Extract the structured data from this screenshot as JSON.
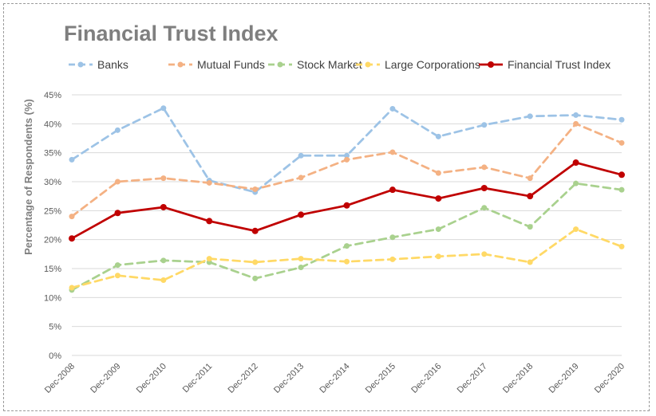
{
  "chart_data": {
    "type": "line",
    "title": "Financial Trust Index",
    "xlabel": "",
    "ylabel": "Percentage of Respondents (%)",
    "ylim": [
      0,
      45
    ],
    "y_ticks": [
      "0%",
      "5%",
      "10%",
      "15%",
      "20%",
      "25%",
      "30%",
      "35%",
      "40%",
      "45%"
    ],
    "grid": true,
    "legend_position": "top",
    "categories": [
      "Dec-2008",
      "Dec-2009",
      "Dec-2010",
      "Dec-2011",
      "Dec-2012",
      "Dec-2013",
      "Dec-2014",
      "Dec-2015",
      "Dec-2016",
      "Dec-2017",
      "Dec-2018",
      "Dec-2019",
      "Dec-2020"
    ],
    "series": [
      {
        "name": "Banks",
        "color": "#9dc3e6",
        "dashed": true,
        "values": [
          33.8,
          38.9,
          42.7,
          30.2,
          28.2,
          34.5,
          34.5,
          42.6,
          37.8,
          39.8,
          41.3,
          41.5,
          40.7
        ]
      },
      {
        "name": "Mutual Funds",
        "color": "#f4b183",
        "dashed": true,
        "values": [
          24.0,
          30.0,
          30.6,
          29.8,
          28.7,
          30.7,
          33.8,
          35.1,
          31.5,
          32.5,
          30.6,
          40.0,
          36.7
        ]
      },
      {
        "name": "Stock Market",
        "color": "#a9d18e",
        "dashed": true,
        "values": [
          11.3,
          15.6,
          16.4,
          16.1,
          13.3,
          15.2,
          18.9,
          20.4,
          21.8,
          25.5,
          22.2,
          29.7,
          28.6
        ]
      },
      {
        "name": "Large Corporations",
        "color": "#ffd966",
        "dashed": true,
        "values": [
          11.7,
          13.8,
          13.0,
          16.7,
          16.1,
          16.7,
          16.2,
          16.6,
          17.1,
          17.5,
          16.1,
          21.8,
          18.8
        ]
      },
      {
        "name": "Financial Trust Index",
        "color": "#c00000",
        "dashed": false,
        "values": [
          20.2,
          24.6,
          25.6,
          23.2,
          21.5,
          24.3,
          25.9,
          28.6,
          27.1,
          28.9,
          27.5,
          33.3,
          31.2
        ]
      }
    ]
  }
}
